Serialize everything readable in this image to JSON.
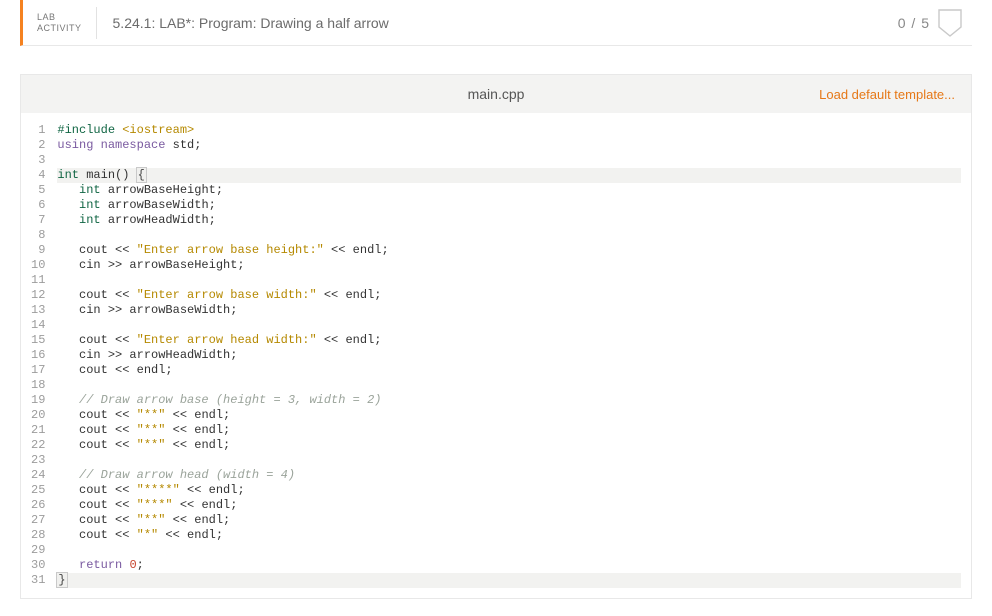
{
  "header": {
    "badge_line1": "LAB",
    "badge_line2": "ACTIVITY",
    "title": "5.24.1: LAB*: Program: Drawing a half arrow",
    "score": "0 / 5"
  },
  "editor": {
    "filename": "main.cpp",
    "load_default_label": "Load default template...",
    "active_lines": [
      4,
      31
    ]
  },
  "colors": {
    "accent": "#f58220",
    "link": "#e67817",
    "gutter_text": "#9c9c9c",
    "border": "#e8e8e8",
    "topbar_bg": "#f3f3f2",
    "active_line_bg": "#f2f2f0"
  },
  "code": [
    {
      "n": 1,
      "tokens": [
        {
          "t": "#include",
          "c": "preproc"
        },
        {
          "t": " "
        },
        {
          "t": "<iostream>",
          "c": "string"
        }
      ]
    },
    {
      "n": 2,
      "tokens": [
        {
          "t": "using",
          "c": "keyword"
        },
        {
          "t": " "
        },
        {
          "t": "namespace",
          "c": "keyword"
        },
        {
          "t": " "
        },
        {
          "t": "std",
          "c": "ident"
        },
        {
          "t": ";",
          "c": "op"
        }
      ]
    },
    {
      "n": 3,
      "tokens": []
    },
    {
      "n": 4,
      "tokens": [
        {
          "t": "int",
          "c": "type"
        },
        {
          "t": " "
        },
        {
          "t": "main",
          "c": "ident"
        },
        {
          "t": "() ",
          "c": "op"
        },
        {
          "t": "{",
          "c": "bracket"
        }
      ]
    },
    {
      "n": 5,
      "tokens": [
        {
          "t": "   "
        },
        {
          "t": "int",
          "c": "type"
        },
        {
          "t": " arrowBaseHeight;",
          "c": "ident"
        }
      ]
    },
    {
      "n": 6,
      "tokens": [
        {
          "t": "   "
        },
        {
          "t": "int",
          "c": "type"
        },
        {
          "t": " arrowBaseWidth;",
          "c": "ident"
        }
      ]
    },
    {
      "n": 7,
      "tokens": [
        {
          "t": "   "
        },
        {
          "t": "int",
          "c": "type"
        },
        {
          "t": " arrowHeadWidth;",
          "c": "ident"
        }
      ]
    },
    {
      "n": 8,
      "tokens": []
    },
    {
      "n": 9,
      "tokens": [
        {
          "t": "   cout << ",
          "c": "ident"
        },
        {
          "t": "\"Enter arrow base height:\"",
          "c": "string"
        },
        {
          "t": " << endl;",
          "c": "ident"
        }
      ]
    },
    {
      "n": 10,
      "tokens": [
        {
          "t": "   cin >> arrowBaseHeight;",
          "c": "ident"
        }
      ]
    },
    {
      "n": 11,
      "tokens": []
    },
    {
      "n": 12,
      "tokens": [
        {
          "t": "   cout << ",
          "c": "ident"
        },
        {
          "t": "\"Enter arrow base width:\"",
          "c": "string"
        },
        {
          "t": " << endl;",
          "c": "ident"
        }
      ]
    },
    {
      "n": 13,
      "tokens": [
        {
          "t": "   cin >> arrowBaseWidth;",
          "c": "ident"
        }
      ]
    },
    {
      "n": 14,
      "tokens": []
    },
    {
      "n": 15,
      "tokens": [
        {
          "t": "   cout << ",
          "c": "ident"
        },
        {
          "t": "\"Enter arrow head width:\"",
          "c": "string"
        },
        {
          "t": " << endl;",
          "c": "ident"
        }
      ]
    },
    {
      "n": 16,
      "tokens": [
        {
          "t": "   cin >> arrowHeadWidth;",
          "c": "ident"
        }
      ]
    },
    {
      "n": 17,
      "tokens": [
        {
          "t": "   cout << endl;",
          "c": "ident"
        }
      ]
    },
    {
      "n": 18,
      "tokens": []
    },
    {
      "n": 19,
      "tokens": [
        {
          "t": "   "
        },
        {
          "t": "// Draw arrow base (height = 3, width = 2)",
          "c": "comment"
        }
      ]
    },
    {
      "n": 20,
      "tokens": [
        {
          "t": "   cout << ",
          "c": "ident"
        },
        {
          "t": "\"**\"",
          "c": "string"
        },
        {
          "t": " << endl;",
          "c": "ident"
        }
      ]
    },
    {
      "n": 21,
      "tokens": [
        {
          "t": "   cout << ",
          "c": "ident"
        },
        {
          "t": "\"**\"",
          "c": "string"
        },
        {
          "t": " << endl;",
          "c": "ident"
        }
      ]
    },
    {
      "n": 22,
      "tokens": [
        {
          "t": "   cout << ",
          "c": "ident"
        },
        {
          "t": "\"**\"",
          "c": "string"
        },
        {
          "t": " << endl;",
          "c": "ident"
        }
      ]
    },
    {
      "n": 23,
      "tokens": []
    },
    {
      "n": 24,
      "tokens": [
        {
          "t": "   "
        },
        {
          "t": "// Draw arrow head (width = 4)",
          "c": "comment"
        }
      ]
    },
    {
      "n": 25,
      "tokens": [
        {
          "t": "   cout << ",
          "c": "ident"
        },
        {
          "t": "\"****\"",
          "c": "string"
        },
        {
          "t": " << endl;",
          "c": "ident"
        }
      ]
    },
    {
      "n": 26,
      "tokens": [
        {
          "t": "   cout << ",
          "c": "ident"
        },
        {
          "t": "\"***\"",
          "c": "string"
        },
        {
          "t": " << endl;",
          "c": "ident"
        }
      ]
    },
    {
      "n": 27,
      "tokens": [
        {
          "t": "   cout << ",
          "c": "ident"
        },
        {
          "t": "\"**\"",
          "c": "string"
        },
        {
          "t": " << endl;",
          "c": "ident"
        }
      ]
    },
    {
      "n": 28,
      "tokens": [
        {
          "t": "   cout << ",
          "c": "ident"
        },
        {
          "t": "\"*\"",
          "c": "string"
        },
        {
          "t": " << endl;",
          "c": "ident"
        }
      ]
    },
    {
      "n": 29,
      "tokens": []
    },
    {
      "n": 30,
      "tokens": [
        {
          "t": "   "
        },
        {
          "t": "return",
          "c": "keyword"
        },
        {
          "t": " "
        },
        {
          "t": "0",
          "c": "number"
        },
        {
          "t": ";",
          "c": "op"
        }
      ]
    },
    {
      "n": 31,
      "tokens": [
        {
          "t": "}",
          "c": "bracket"
        }
      ]
    }
  ]
}
